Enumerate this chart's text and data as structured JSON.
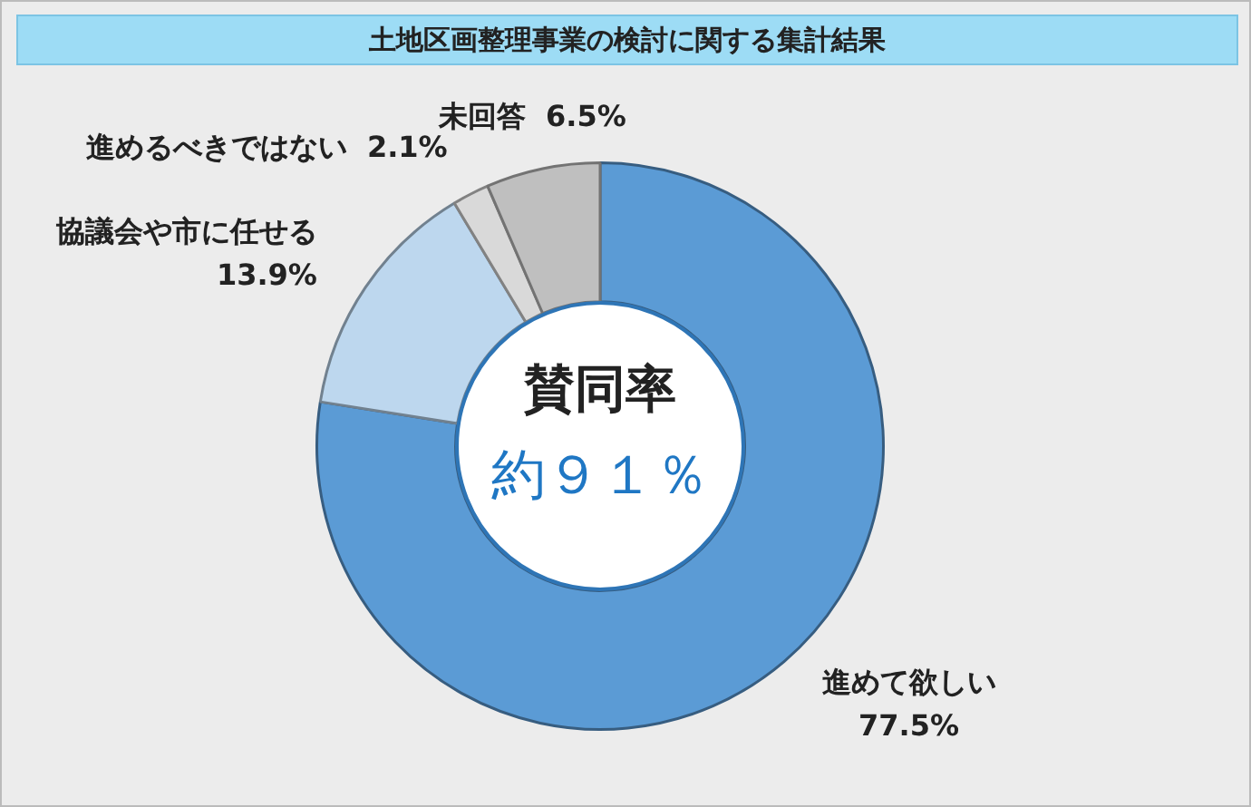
{
  "chart_data": {
    "type": "donut",
    "title": "土地区画整理事業の検討に関する集計結果",
    "categories": [
      "進めて欲しい",
      "協議会や市に任せる",
      "進めるべきではない",
      "未回答"
    ],
    "values": [
      77.5,
      13.9,
      2.1,
      6.5
    ],
    "value_labels": [
      "77.5%",
      "13.9%",
      "2.1%",
      "6.5%"
    ],
    "colors": [
      "#5b9bd5",
      "#bdd7ee",
      "#d9d9d9",
      "#bfbfbf"
    ],
    "annotations": [
      "賛同率",
      "約９１％"
    ],
    "legend": false
  }
}
